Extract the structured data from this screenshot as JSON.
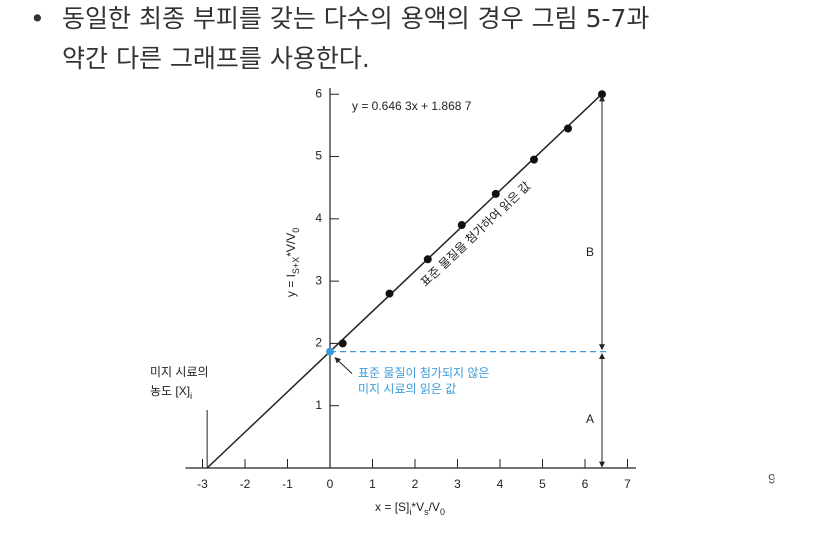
{
  "slide": {
    "bullet_lines": [
      "동일한 최종 부피를 갖는 다수의 용액의 경우 그림 5-7과",
      "약간 다른 그래프를 사용한다."
    ],
    "page_number": "9"
  },
  "chart_data": {
    "type": "scatter",
    "equation": "y = 0.646 3x + 1.868 7",
    "line_label": "표준 물질을 첨가하여 읽은 값",
    "x_label_parts": [
      "x = [S]",
      "i",
      "*V",
      "s",
      "/V",
      "0"
    ],
    "y_label_parts": [
      "y = I",
      "S+X",
      "*V/V",
      "0"
    ],
    "x": [
      0.3,
      1.4,
      2.3,
      3.1,
      3.9,
      4.8,
      5.6,
      6.4
    ],
    "values": [
      2.0,
      2.8,
      3.35,
      3.9,
      4.4,
      4.95,
      5.45,
      6.0
    ],
    "color": "#111111",
    "fit_line": {
      "x": [
        -2.891,
        6.4
      ],
      "y": [
        0,
        6.005
      ]
    },
    "intercept_point": {
      "x": 0,
      "y": 1.8687,
      "color": "#3a9bdc",
      "label_lines": [
        "표준 물질이 첨가되지 않은",
        "미지 시료의 읽은 값"
      ]
    },
    "x_intercept_label_lines": [
      "미지 시료의",
      "농도 [X]",
      "i"
    ],
    "segment_labels": [
      "A",
      "B"
    ],
    "xlim": [
      -3.4,
      7.2
    ],
    "ylim": [
      0,
      6.1
    ],
    "xticks": [
      -3,
      -2,
      -1,
      0,
      1,
      2,
      3,
      4,
      5,
      6,
      7
    ],
    "yticks": [
      1,
      2,
      3,
      4,
      5,
      6
    ]
  }
}
